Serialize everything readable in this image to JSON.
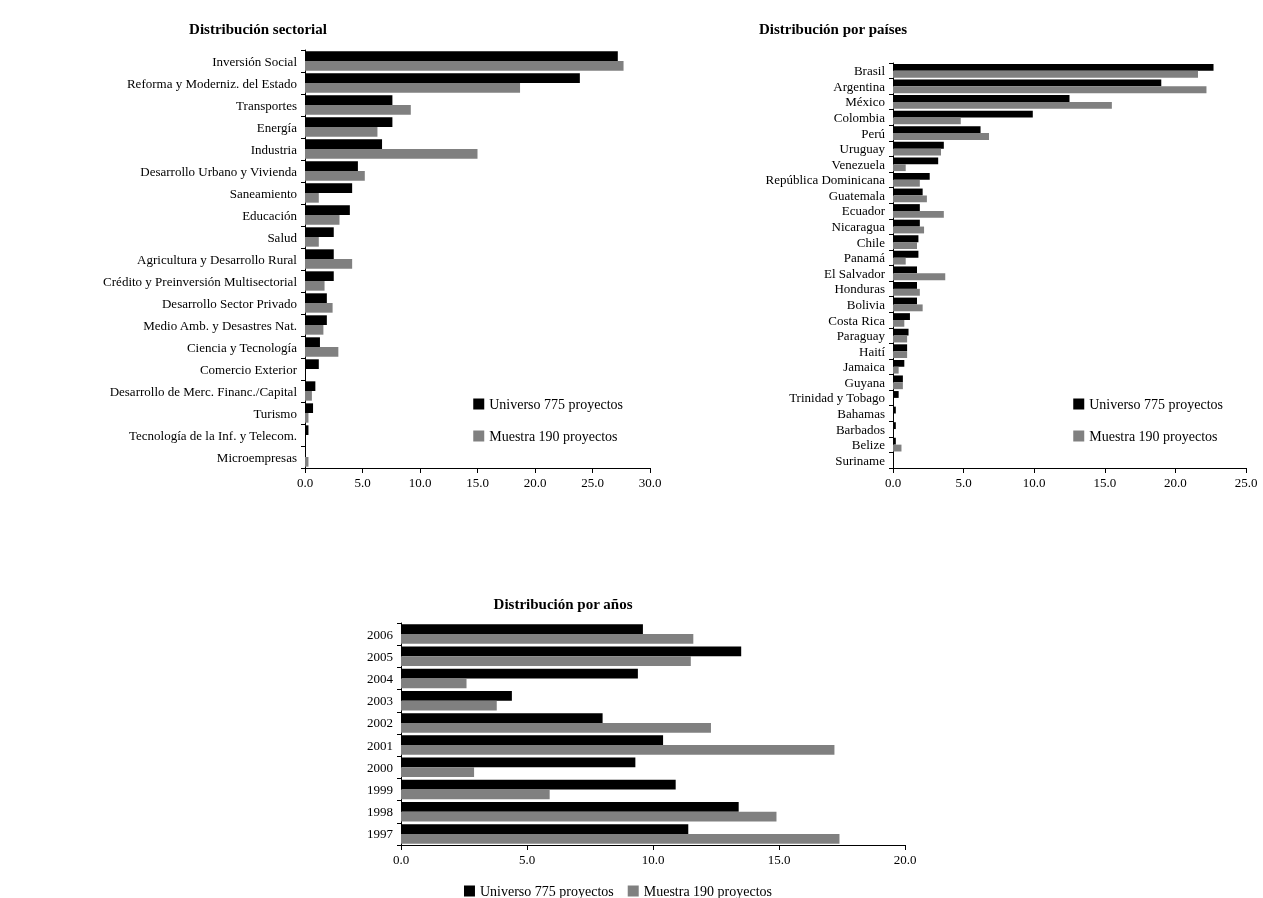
{
  "chart_data": [
    {
      "type": "bar",
      "orientation": "horizontal",
      "title": "Distribución sectorial",
      "categories": [
        "Inversión Social",
        "Reforma y Moderniz. del Estado",
        "Transportes",
        "Energía",
        "Industria",
        "Desarrollo Urbano y Vivienda",
        "Saneamiento",
        "Educación",
        "Salud",
        "Agricultura y Desarrollo Rural",
        "Crédito y Preinversión Multisectorial",
        "Desarrollo Sector Privado",
        "Medio Amb. y Desastres Nat.",
        "Ciencia y Tecnología",
        "Comercio Exterior",
        "Desarrollo de Merc. Financ./Capital",
        "Turismo",
        "Tecnología de la Inf. y Telecom.",
        "Microempresas"
      ],
      "series": [
        {
          "name": "Universo 775 proyectos",
          "color": "#000000",
          "values": [
            27.2,
            23.9,
            7.6,
            7.6,
            6.7,
            4.6,
            4.1,
            3.9,
            2.5,
            2.5,
            2.5,
            1.9,
            1.9,
            1.3,
            1.2,
            0.9,
            0.7,
            0.3,
            0
          ]
        },
        {
          "name": "Muestra 190 proyectos",
          "color": "#808080",
          "values": [
            27.7,
            18.7,
            9.2,
            6.3,
            15.0,
            5.2,
            1.2,
            3.0,
            1.2,
            4.1,
            1.7,
            2.4,
            1.6,
            2.9,
            0,
            0.6,
            0.3,
            0,
            0.3
          ]
        }
      ],
      "xlim": [
        0,
        30
      ],
      "xticks": [
        {
          "value": 0,
          "label": "0.0"
        },
        {
          "value": 5,
          "label": "5.0"
        },
        {
          "value": 10,
          "label": "10.0"
        },
        {
          "value": 15,
          "label": "15.0"
        },
        {
          "value": 20,
          "label": "20.0"
        },
        {
          "value": 25,
          "label": "25.0"
        },
        {
          "value": 30,
          "label": "30.0"
        }
      ],
      "legend": "bottom right",
      "grid": false
    },
    {
      "type": "bar",
      "orientation": "horizontal",
      "title": "Distribución por países",
      "categories": [
        "Brasil",
        "Argentina",
        "México",
        "Colombia",
        "Perú",
        "Uruguay",
        "Venezuela",
        "República Dominicana",
        "Guatemala",
        "Ecuador",
        "Nicaragua",
        "Chile",
        "Panamá",
        "El Salvador",
        "Honduras",
        "Bolivia",
        "Costa Rica",
        "Paraguay",
        "Haití",
        "Jamaica",
        "Guyana",
        "Trinidad y Tobago",
        "Bahamas",
        "Barbados",
        "Belize",
        "Suriname"
      ],
      "series": [
        {
          "name": "Universo 775 proyectos",
          "color": "#000000",
          "values": [
            22.7,
            19.0,
            12.5,
            9.9,
            6.2,
            3.6,
            3.2,
            2.6,
            2.1,
            1.9,
            1.9,
            1.8,
            1.8,
            1.7,
            1.7,
            1.7,
            1.2,
            1.1,
            1.0,
            0.8,
            0.7,
            0.4,
            0.2,
            0.2,
            0.2,
            0
          ]
        },
        {
          "name": "Muestra 190 proyectos",
          "color": "#808080",
          "values": [
            21.6,
            22.2,
            15.5,
            4.8,
            6.8,
            3.4,
            0.9,
            1.9,
            2.4,
            3.6,
            2.2,
            1.7,
            0.9,
            3.7,
            1.9,
            2.1,
            0.8,
            1.0,
            1.0,
            0.4,
            0.7,
            0,
            0,
            0,
            0.6,
            0
          ]
        }
      ],
      "xlim": [
        0,
        25
      ],
      "xticks": [
        {
          "value": 0,
          "label": "0.0"
        },
        {
          "value": 5,
          "label": "5.0"
        },
        {
          "value": 10,
          "label": "10.0"
        },
        {
          "value": 15,
          "label": "15.0"
        },
        {
          "value": 20,
          "label": "20.0"
        },
        {
          "value": 25,
          "label": "25.0"
        }
      ],
      "legend": "bottom right",
      "grid": false
    },
    {
      "type": "bar",
      "orientation": "horizontal",
      "title": "Distribución por años",
      "categories": [
        "2006",
        "2005",
        "2004",
        "2003",
        "2002",
        "2001",
        "2000",
        "1999",
        "1998",
        "1997"
      ],
      "series": [
        {
          "name": "Universo 775 proyectos",
          "color": "#000000",
          "values": [
            9.6,
            13.5,
            9.4,
            4.4,
            8.0,
            10.4,
            9.3,
            10.9,
            13.4,
            11.4
          ]
        },
        {
          "name": "Muestra 190 proyectos",
          "color": "#808080",
          "values": [
            11.6,
            11.5,
            2.6,
            3.8,
            12.3,
            17.2,
            2.9,
            5.9,
            14.9,
            17.4
          ]
        }
      ],
      "xlim": [
        0,
        20
      ],
      "xticks": [
        {
          "value": 0,
          "label": "0.0"
        },
        {
          "value": 5,
          "label": "5.0"
        },
        {
          "value": 10,
          "label": "10.0"
        },
        {
          "value": 15,
          "label": "15.0"
        },
        {
          "value": 20,
          "label": "20.0"
        }
      ],
      "legend": "bottom",
      "grid": false
    }
  ]
}
